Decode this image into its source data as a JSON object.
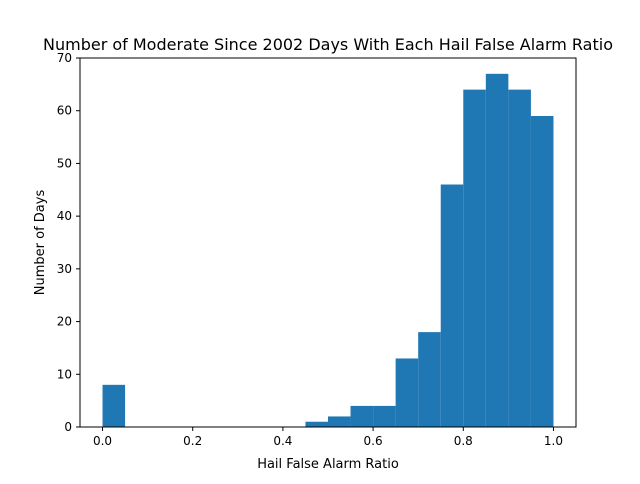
{
  "chart_data": {
    "type": "bar",
    "title": "Number of Moderate Since 2002 Days With Each Hail False Alarm Ratio",
    "xlabel": "Hail False Alarm Ratio",
    "ylabel": "Number of Days",
    "xlim": [
      -0.05,
      1.05
    ],
    "ylim": [
      0,
      70
    ],
    "xticks": [
      "0.0",
      "0.2",
      "0.4",
      "0.6",
      "0.8",
      "1.0"
    ],
    "yticks": [
      "0",
      "10",
      "20",
      "30",
      "40",
      "50",
      "60",
      "70"
    ],
    "bar_color": "#1f77b4",
    "bins": [
      {
        "x0": 0.0,
        "x1": 0.05,
        "value": 8
      },
      {
        "x0": 0.05,
        "x1": 0.1,
        "value": 0
      },
      {
        "x0": 0.1,
        "x1": 0.15,
        "value": 0
      },
      {
        "x0": 0.15,
        "x1": 0.2,
        "value": 0
      },
      {
        "x0": 0.2,
        "x1": 0.25,
        "value": 0
      },
      {
        "x0": 0.25,
        "x1": 0.3,
        "value": 0
      },
      {
        "x0": 0.3,
        "x1": 0.35,
        "value": 0
      },
      {
        "x0": 0.35,
        "x1": 0.4,
        "value": 0
      },
      {
        "x0": 0.4,
        "x1": 0.45,
        "value": 0
      },
      {
        "x0": 0.45,
        "x1": 0.5,
        "value": 1
      },
      {
        "x0": 0.5,
        "x1": 0.55,
        "value": 2
      },
      {
        "x0": 0.55,
        "x1": 0.6,
        "value": 4
      },
      {
        "x0": 0.6,
        "x1": 0.65,
        "value": 4
      },
      {
        "x0": 0.65,
        "x1": 0.7,
        "value": 13
      },
      {
        "x0": 0.7,
        "x1": 0.75,
        "value": 18
      },
      {
        "x0": 0.75,
        "x1": 0.8,
        "value": 46
      },
      {
        "x0": 0.8,
        "x1": 0.85,
        "value": 64
      },
      {
        "x0": 0.85,
        "x1": 0.9,
        "value": 67
      },
      {
        "x0": 0.9,
        "x1": 0.95,
        "value": 64
      },
      {
        "x0": 0.95,
        "x1": 1.0,
        "value": 59
      }
    ]
  }
}
